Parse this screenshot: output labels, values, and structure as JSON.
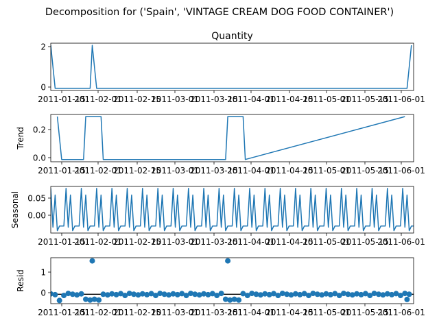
{
  "figure": {
    "suptitle": "Decomposition for ('Spain', 'VINTAGE CREAM DOG FOOD CONTAINER')",
    "line_color": "#1f77b4",
    "text_color": "#000000"
  },
  "chart_data": [
    {
      "type": "line",
      "title": "Quantity",
      "ylabel": "",
      "xlabel": "",
      "x_ticks": [
        "2011-01-15",
        "2011-02-01",
        "2011-02-15",
        "2011-03-01",
        "2011-03-15",
        "2011-04-01",
        "2011-04-15",
        "2011-05-01",
        "2011-05-15",
        "2011-06-01"
      ],
      "y_ticks": [
        "0",
        "2"
      ],
      "ylim": [
        -0.1,
        2.1
      ],
      "xlim": [
        0,
        166
      ],
      "series": [
        {
          "x": [
            0,
            2,
            4,
            6,
            8,
            10,
            12,
            14,
            16,
            18,
            19,
            21,
            23,
            25,
            27,
            29,
            31,
            33,
            35,
            37,
            39,
            41,
            43,
            45,
            47,
            49,
            51,
            53,
            55,
            57,
            59,
            61,
            63,
            65,
            67,
            69,
            71,
            73,
            75,
            77,
            79,
            81,
            83,
            85,
            87,
            89,
            91,
            93,
            95,
            97,
            99,
            101,
            103,
            105,
            107,
            109,
            111,
            113,
            115,
            117,
            119,
            121,
            123,
            125,
            127,
            129,
            131,
            133,
            135,
            137,
            139,
            141,
            143,
            145,
            147,
            149,
            151,
            153,
            155,
            157,
            159,
            161,
            163,
            165
          ],
          "values": [
            2,
            0,
            0,
            0,
            0,
            0,
            0,
            0,
            0,
            0,
            2,
            0,
            0,
            0,
            0,
            0,
            0,
            0,
            0,
            0,
            0,
            0,
            0,
            0,
            0,
            0,
            0,
            0,
            0,
            0,
            0,
            0,
            0,
            0,
            0,
            0,
            0,
            0,
            0,
            0,
            0,
            0,
            0,
            0,
            0,
            0,
            0,
            0,
            0,
            0,
            0,
            0,
            0,
            0,
            0,
            0,
            0,
            0,
            0,
            0,
            0,
            0,
            0,
            0,
            0,
            0,
            0,
            0,
            0,
            0,
            0,
            0,
            0,
            0,
            0,
            0,
            0,
            0,
            0,
            0,
            0,
            0,
            0,
            2
          ]
        }
      ]
    },
    {
      "type": "line",
      "title": "",
      "ylabel": "Trend",
      "xlabel": "",
      "x_ticks": [
        "2011-01-15",
        "2011-02-01",
        "2011-02-15",
        "2011-03-01",
        "2011-03-15",
        "2011-04-01",
        "2011-04-15",
        "2011-05-01",
        "2011-05-15",
        "2011-06-01"
      ],
      "y_ticks": [
        "0.0",
        "0.2"
      ],
      "ylim": [
        -0.015,
        0.3
      ],
      "xlim": [
        0,
        166
      ],
      "series": [
        {
          "x": [
            3,
            5,
            15,
            16,
            23,
            24,
            80,
            81,
            88,
            89,
            162
          ],
          "values": [
            0.286,
            0,
            0,
            0.286,
            0.286,
            0,
            0,
            0.286,
            0.286,
            0,
            0.286
          ]
        }
      ]
    },
    {
      "type": "line",
      "title": "",
      "ylabel": "Seasonal",
      "xlabel": "",
      "x_ticks": [
        "2011-01-15",
        "2011-02-01",
        "2011-02-15",
        "2011-03-01",
        "2011-03-15",
        "2011-04-01",
        "2011-04-15",
        "2011-05-01",
        "2011-05-15",
        "2011-06-01"
      ],
      "y_ticks": [
        "0.00",
        "0.05"
      ],
      "ylim": [
        -0.04,
        0.08
      ],
      "xlim": [
        0,
        166
      ],
      "period": 7,
      "pattern": [
        0.075,
        -0.025,
        0.058,
        -0.034,
        -0.022,
        -0.022,
        -0.022
      ]
    },
    {
      "type": "scatter",
      "title": "",
      "ylabel": "Resid",
      "xlabel": "",
      "x_ticks": [
        "2011-01-15",
        "2011-02-01",
        "2011-02-15",
        "2011-03-01",
        "2011-03-15",
        "2011-04-01",
        "2011-04-15",
        "2011-05-01",
        "2011-05-15",
        "2011-06-01"
      ],
      "y_ticks": [
        "0",
        "1"
      ],
      "ylim": [
        -0.45,
        1.75
      ],
      "xlim": [
        0,
        166
      ],
      "zero_line": 0,
      "outliers": [
        {
          "x": 4,
          "y": -0.3
        },
        {
          "x": 19,
          "y": 1.6
        },
        {
          "x": 81,
          "y": 1.6
        },
        {
          "x": 163,
          "y": -0.25
        }
      ],
      "low_clusters": [
        [
          15,
          23
        ],
        [
          79,
          87
        ]
      ],
      "base_values": [
        0.02,
        -0.02,
        0.03,
        -0.06,
        0.04,
        0.0,
        -0.03
      ]
    }
  ]
}
